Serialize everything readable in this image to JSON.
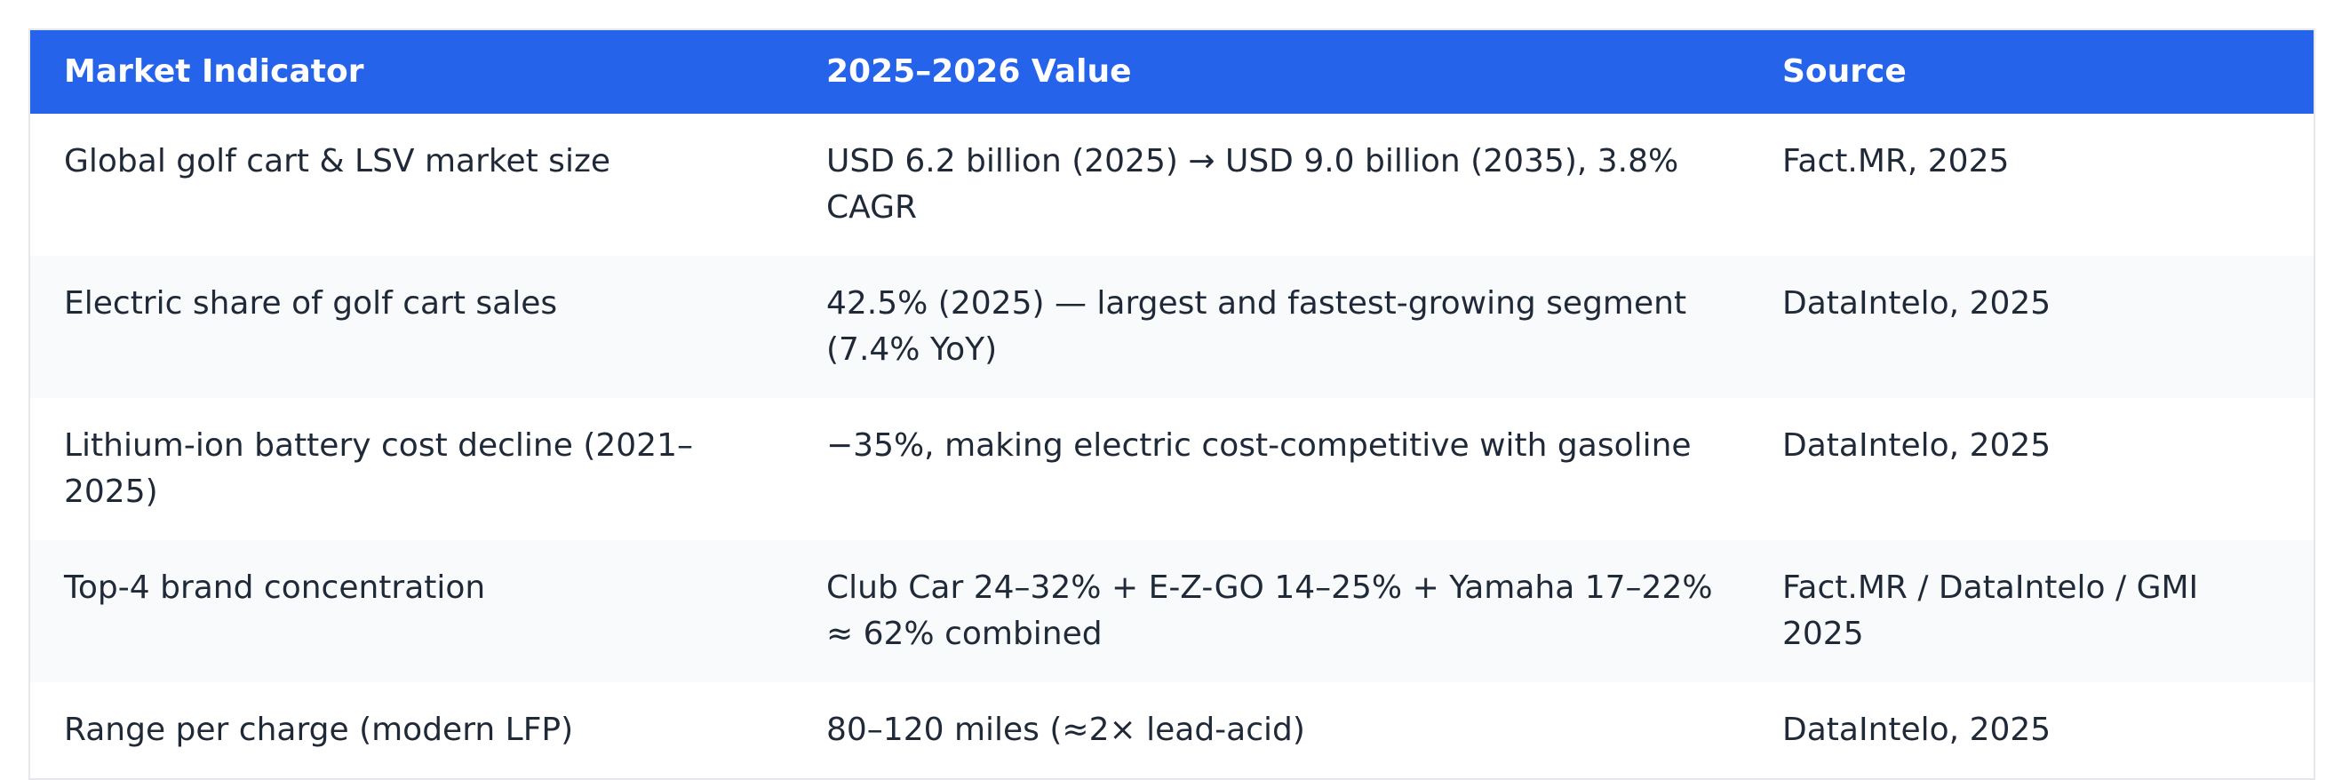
{
  "table": {
    "header": [
      "Market Indicator",
      "2025–2026 Value",
      "Source"
    ],
    "rows": [
      [
        "Global golf cart & LSV market size",
        "USD 6.2 billion (2025) → USD 9.0 billion (2035), 3.8% CAGR",
        "Fact.MR, 2025"
      ],
      [
        "Electric share of golf cart sales",
        "42.5% (2025) — largest and fastest-growing segment (7.4% YoY)",
        "DataIntelo, 2025"
      ],
      [
        "Lithium-ion battery cost decline (2021–2025)",
        "−35%, making electric cost-competitive with gasoline",
        "DataIntelo, 2025"
      ],
      [
        "Top-4 brand concentration",
        "Club Car 24–32% + E-Z-GO 14–25% + Yamaha 17–22% ≈ 62% combined",
        "Fact.MR / DataIntelo / GMI 2025"
      ],
      [
        "Range per charge (modern LFP)",
        "80–120 miles (≈2× lead-acid)",
        "DataIntelo, 2025"
      ]
    ]
  }
}
